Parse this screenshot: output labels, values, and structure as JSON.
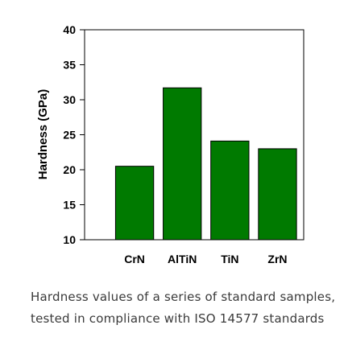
{
  "caption": "Hardness values of a series of standard samples, tested in compliance with ISO 14577 standards",
  "chart_data": {
    "type": "bar",
    "categories": [
      "CrN",
      "AlTiN",
      "TiN",
      "ZrN"
    ],
    "values": [
      20.5,
      31.7,
      24.1,
      23.0
    ],
    "ylabel": "Hardness (GPa)",
    "xlabel": "",
    "ylim": [
      10,
      40
    ],
    "yticks": [
      10,
      15,
      20,
      25,
      30,
      35,
      40
    ],
    "grid": false,
    "bar_color": "#007a00",
    "bar_edge_color": "#000000"
  }
}
